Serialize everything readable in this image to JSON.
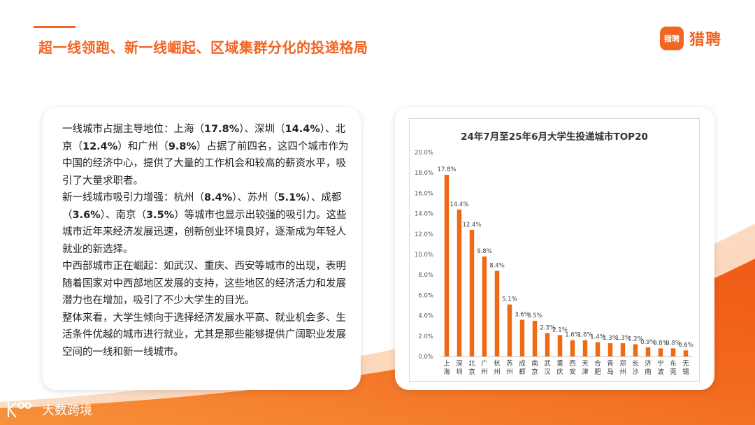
{
  "title": "超一线领跑、新一线崛起、区域集群分化的投递格局",
  "logo": {
    "mark": "猎聘",
    "text": "猎聘"
  },
  "footer": {
    "brand": "大数跨境"
  },
  "colors": {
    "accent": "#f26522",
    "bar": "#ee6a14"
  },
  "paragraphs": [
    [
      {
        "t": "一线城市占据主导地位：上海（",
        "b": false
      },
      {
        "t": "17.8%",
        "b": true
      },
      {
        "t": "）、深圳（",
        "b": false
      },
      {
        "t": "14.4%",
        "b": true
      },
      {
        "t": "）、北京（",
        "b": false
      },
      {
        "t": "12.4%",
        "b": true
      },
      {
        "t": "）和广州（",
        "b": false
      },
      {
        "t": "9.8%",
        "b": true
      },
      {
        "t": "）占据了前四名，这四个城市作为中国的经济中心，提供了大量的工作机会和较高的薪资水平，吸引了大量求职者。",
        "b": false
      }
    ],
    [
      {
        "t": "新一线城市吸引力增强：杭州（",
        "b": false
      },
      {
        "t": "8.4%",
        "b": true
      },
      {
        "t": "）、苏州（",
        "b": false
      },
      {
        "t": "5.1%",
        "b": true
      },
      {
        "t": "）、成都（",
        "b": false
      },
      {
        "t": "3.6%",
        "b": true
      },
      {
        "t": "）、南京（",
        "b": false
      },
      {
        "t": "3.5%",
        "b": true
      },
      {
        "t": "）等城市也显示出较强的吸引力。这些城市近年来经济发展迅速，创新创业环境良好，逐渐成为年轻人就业的新选择。",
        "b": false
      }
    ],
    [
      {
        "t": "中西部城市正在崛起：如武汉、重庆、西安等城市的出现，表明随着国家对中西部地区发展的支持，这些地区的经济活力和发展潜力也在增加，吸引了不少大学生的目光。",
        "b": false
      }
    ],
    [
      {
        "t": "整体来看，大学生倾向于选择经济发展水平高、就业机会多、生活条件优越的城市进行就业，尤其是那些能够提供广阔职业发展空间的一线和新一线城市。",
        "b": false
      }
    ]
  ],
  "chart_data": {
    "type": "bar",
    "title": "24年7月至25年6月大学生投递城市TOP20",
    "categories": [
      "上海",
      "深圳",
      "北京",
      "广州",
      "杭州",
      "苏州",
      "成都",
      "南京",
      "武汉",
      "重庆",
      "西安",
      "天津",
      "合肥",
      "青岛",
      "郑州",
      "长沙",
      "济南",
      "宁波",
      "东莞",
      "无锡"
    ],
    "values": [
      17.8,
      14.4,
      12.4,
      9.8,
      8.4,
      5.1,
      3.6,
      3.5,
      2.3,
      2.1,
      1.6,
      1.6,
      1.4,
      1.3,
      1.3,
      1.2,
      0.9,
      0.8,
      0.8,
      0.6
    ],
    "value_labels": [
      "17.8%",
      "14.4%",
      "12.4%",
      "9.8%",
      "8.4%",
      "5.1%",
      "3.6%",
      "3.5%",
      "2.3%",
      "2.1%",
      "1.6%",
      "1.6%",
      "1.4%",
      "1.3%",
      "1.3%",
      "1.2%",
      "0.9%",
      "0.8%",
      "0.8%",
      "0.6%"
    ],
    "yticks": [
      "0.0%",
      "2.0%",
      "4.0%",
      "6.0%",
      "8.0%",
      "10.0%",
      "12.0%",
      "14.0%",
      "16.0%",
      "18.0%",
      "20.0%"
    ],
    "ylim": [
      0,
      20
    ],
    "xlabel": "",
    "ylabel": "",
    "grid": false,
    "legend": "none"
  }
}
